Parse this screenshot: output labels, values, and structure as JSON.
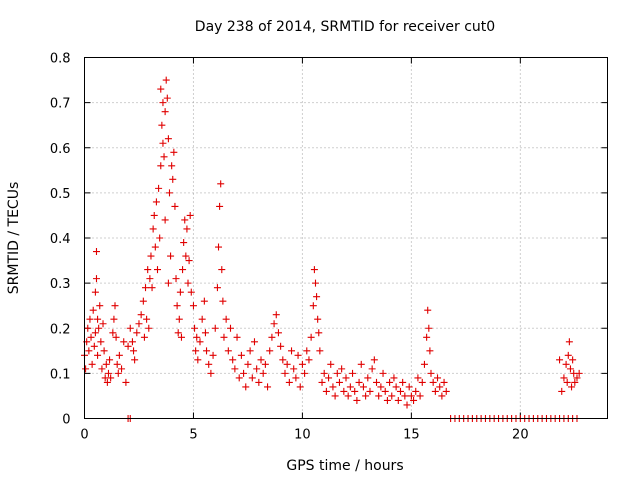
{
  "chart_data": {
    "type": "scatter",
    "title": "Day 238 of 2014, SRMTID for receiver cut0",
    "xlabel": "GPS time / hours",
    "ylabel": "SRMTID / TECUs",
    "xlim": [
      0,
      24
    ],
    "ylim": [
      0,
      0.8
    ],
    "x_ticks": [
      "0",
      "5",
      "10",
      "15",
      "20"
    ],
    "x_tick_values": [
      0,
      5,
      10,
      15,
      20
    ],
    "y_ticks": [
      "0",
      "0.1",
      "0.2",
      "0.3",
      "0.4",
      "0.5",
      "0.6",
      "0.7",
      "0.8"
    ],
    "y_tick_values": [
      0,
      0.1,
      0.2,
      0.3,
      0.4,
      0.5,
      0.6,
      0.7,
      0.8
    ],
    "grid": true,
    "marker": "+",
    "marker_color": "#e00000",
    "series": [
      {
        "name": "SRMTID",
        "points": [
          [
            0.0,
            0.14
          ],
          [
            0.05,
            0.11
          ],
          [
            0.1,
            0.17
          ],
          [
            0.15,
            0.2
          ],
          [
            0.2,
            0.15
          ],
          [
            0.25,
            0.22
          ],
          [
            0.3,
            0.18
          ],
          [
            0.35,
            0.12
          ],
          [
            0.4,
            0.24
          ],
          [
            0.45,
            0.16
          ],
          [
            0.5,
            0.28
          ],
          [
            0.5,
            0.19
          ],
          [
            0.55,
            0.37
          ],
          [
            0.55,
            0.31
          ],
          [
            0.6,
            0.22
          ],
          [
            0.6,
            0.14
          ],
          [
            0.65,
            0.2
          ],
          [
            0.7,
            0.25
          ],
          [
            0.75,
            0.17
          ],
          [
            0.8,
            0.11
          ],
          [
            0.85,
            0.21
          ],
          [
            0.9,
            0.15
          ],
          [
            0.95,
            0.09
          ],
          [
            1.0,
            0.12
          ],
          [
            1.05,
            0.08
          ],
          [
            1.1,
            0.1
          ],
          [
            1.15,
            0.13
          ],
          [
            1.2,
            0.09
          ],
          [
            1.3,
            0.19
          ],
          [
            1.35,
            0.22
          ],
          [
            1.4,
            0.25
          ],
          [
            1.45,
            0.18
          ],
          [
            1.5,
            0.12
          ],
          [
            1.55,
            0.1
          ],
          [
            1.6,
            0.14
          ],
          [
            1.7,
            0.11
          ],
          [
            1.8,
            0.17
          ],
          [
            1.9,
            0.08
          ],
          [
            2.0,
            0.16
          ],
          [
            2.0,
            0.0
          ],
          [
            2.1,
            0.0
          ],
          [
            2.1,
            0.2
          ],
          [
            2.2,
            0.17
          ],
          [
            2.25,
            0.15
          ],
          [
            2.3,
            0.13
          ],
          [
            2.4,
            0.19
          ],
          [
            2.5,
            0.21
          ],
          [
            2.6,
            0.23
          ],
          [
            2.7,
            0.26
          ],
          [
            2.75,
            0.18
          ],
          [
            2.8,
            0.29
          ],
          [
            2.85,
            0.22
          ],
          [
            2.9,
            0.33
          ],
          [
            2.95,
            0.2
          ],
          [
            3.0,
            0.31
          ],
          [
            3.05,
            0.36
          ],
          [
            3.1,
            0.29
          ],
          [
            3.15,
            0.42
          ],
          [
            3.2,
            0.45
          ],
          [
            3.25,
            0.38
          ],
          [
            3.3,
            0.48
          ],
          [
            3.35,
            0.33
          ],
          [
            3.4,
            0.51
          ],
          [
            3.45,
            0.4
          ],
          [
            3.5,
            0.56
          ],
          [
            3.5,
            0.73
          ],
          [
            3.55,
            0.65
          ],
          [
            3.6,
            0.61
          ],
          [
            3.6,
            0.7
          ],
          [
            3.65,
            0.58
          ],
          [
            3.7,
            0.68
          ],
          [
            3.7,
            0.44
          ],
          [
            3.75,
            0.75
          ],
          [
            3.8,
            0.71
          ],
          [
            3.85,
            0.62
          ],
          [
            3.85,
            0.3
          ],
          [
            3.9,
            0.5
          ],
          [
            3.95,
            0.36
          ],
          [
            4.0,
            0.56
          ],
          [
            4.05,
            0.53
          ],
          [
            4.1,
            0.59
          ],
          [
            4.15,
            0.47
          ],
          [
            4.2,
            0.31
          ],
          [
            4.25,
            0.25
          ],
          [
            4.3,
            0.19
          ],
          [
            4.35,
            0.22
          ],
          [
            4.4,
            0.28
          ],
          [
            4.45,
            0.18
          ],
          [
            4.5,
            0.33
          ],
          [
            4.55,
            0.39
          ],
          [
            4.6,
            0.44
          ],
          [
            4.65,
            0.36
          ],
          [
            4.7,
            0.42
          ],
          [
            4.75,
            0.3
          ],
          [
            4.8,
            0.35
          ],
          [
            4.85,
            0.45
          ],
          [
            4.9,
            0.28
          ],
          [
            5.0,
            0.25
          ],
          [
            5.05,
            0.2
          ],
          [
            5.1,
            0.15
          ],
          [
            5.15,
            0.18
          ],
          [
            5.2,
            0.13
          ],
          [
            5.3,
            0.17
          ],
          [
            5.4,
            0.22
          ],
          [
            5.5,
            0.26
          ],
          [
            5.55,
            0.19
          ],
          [
            5.6,
            0.15
          ],
          [
            5.7,
            0.12
          ],
          [
            5.8,
            0.1
          ],
          [
            5.9,
            0.14
          ],
          [
            6.0,
            0.2
          ],
          [
            6.1,
            0.29
          ],
          [
            6.15,
            0.38
          ],
          [
            6.2,
            0.47
          ],
          [
            6.25,
            0.52
          ],
          [
            6.3,
            0.33
          ],
          [
            6.35,
            0.26
          ],
          [
            6.4,
            0.18
          ],
          [
            6.5,
            0.22
          ],
          [
            6.6,
            0.15
          ],
          [
            6.7,
            0.2
          ],
          [
            6.8,
            0.13
          ],
          [
            6.9,
            0.11
          ],
          [
            7.0,
            0.18
          ],
          [
            7.1,
            0.09
          ],
          [
            7.2,
            0.14
          ],
          [
            7.3,
            0.1
          ],
          [
            7.4,
            0.07
          ],
          [
            7.5,
            0.12
          ],
          [
            7.6,
            0.15
          ],
          [
            7.7,
            0.09
          ],
          [
            7.8,
            0.17
          ],
          [
            7.9,
            0.11
          ],
          [
            8.0,
            0.08
          ],
          [
            8.1,
            0.13
          ],
          [
            8.2,
            0.1
          ],
          [
            8.3,
            0.12
          ],
          [
            8.4,
            0.07
          ],
          [
            8.5,
            0.15
          ],
          [
            8.6,
            0.18
          ],
          [
            8.7,
            0.21
          ],
          [
            8.8,
            0.23
          ],
          [
            8.9,
            0.19
          ],
          [
            9.0,
            0.16
          ],
          [
            9.1,
            0.13
          ],
          [
            9.2,
            0.1
          ],
          [
            9.3,
            0.12
          ],
          [
            9.4,
            0.08
          ],
          [
            9.5,
            0.15
          ],
          [
            9.6,
            0.11
          ],
          [
            9.7,
            0.09
          ],
          [
            9.8,
            0.14
          ],
          [
            9.9,
            0.07
          ],
          [
            10.0,
            0.12
          ],
          [
            10.1,
            0.1
          ],
          [
            10.2,
            0.15
          ],
          [
            10.3,
            0.13
          ],
          [
            10.4,
            0.18
          ],
          [
            10.5,
            0.25
          ],
          [
            10.55,
            0.33
          ],
          [
            10.6,
            0.3
          ],
          [
            10.65,
            0.27
          ],
          [
            10.7,
            0.22
          ],
          [
            10.75,
            0.19
          ],
          [
            10.8,
            0.15
          ],
          [
            10.9,
            0.08
          ],
          [
            11.0,
            0.1
          ],
          [
            11.1,
            0.06
          ],
          [
            11.2,
            0.09
          ],
          [
            11.3,
            0.12
          ],
          [
            11.4,
            0.07
          ],
          [
            11.5,
            0.05
          ],
          [
            11.6,
            0.1
          ],
          [
            11.7,
            0.08
          ],
          [
            11.8,
            0.11
          ],
          [
            11.9,
            0.06
          ],
          [
            12.0,
            0.09
          ],
          [
            12.1,
            0.05
          ],
          [
            12.2,
            0.07
          ],
          [
            12.3,
            0.1
          ],
          [
            12.4,
            0.06
          ],
          [
            12.5,
            0.04
          ],
          [
            12.6,
            0.08
          ],
          [
            12.7,
            0.12
          ],
          [
            12.8,
            0.07
          ],
          [
            12.9,
            0.05
          ],
          [
            13.0,
            0.09
          ],
          [
            13.1,
            0.06
          ],
          [
            13.2,
            0.11
          ],
          [
            13.3,
            0.13
          ],
          [
            13.4,
            0.08
          ],
          [
            13.5,
            0.05
          ],
          [
            13.6,
            0.07
          ],
          [
            13.7,
            0.1
          ],
          [
            13.8,
            0.06
          ],
          [
            13.9,
            0.04
          ],
          [
            14.0,
            0.08
          ],
          [
            14.1,
            0.05
          ],
          [
            14.2,
            0.09
          ],
          [
            14.3,
            0.07
          ],
          [
            14.4,
            0.04
          ],
          [
            14.5,
            0.06
          ],
          [
            14.6,
            0.08
          ],
          [
            14.7,
            0.05
          ],
          [
            14.8,
            0.03
          ],
          [
            14.9,
            0.07
          ],
          [
            15.0,
            0.05
          ],
          [
            15.1,
            0.04
          ],
          [
            15.2,
            0.06
          ],
          [
            15.3,
            0.09
          ],
          [
            15.4,
            0.05
          ],
          [
            15.5,
            0.08
          ],
          [
            15.6,
            0.12
          ],
          [
            15.7,
            0.18
          ],
          [
            15.75,
            0.24
          ],
          [
            15.8,
            0.2
          ],
          [
            15.85,
            0.15
          ],
          [
            15.9,
            0.1
          ],
          [
            16.0,
            0.08
          ],
          [
            16.1,
            0.06
          ],
          [
            16.2,
            0.09
          ],
          [
            16.3,
            0.07
          ],
          [
            16.4,
            0.05
          ],
          [
            16.5,
            0.08
          ],
          [
            16.6,
            0.06
          ],
          [
            16.8,
            0.0
          ],
          [
            17.0,
            0.0
          ],
          [
            17.2,
            0.0
          ],
          [
            17.4,
            0.0
          ],
          [
            17.6,
            0.0
          ],
          [
            17.8,
            0.0
          ],
          [
            18.0,
            0.0
          ],
          [
            18.2,
            0.0
          ],
          [
            18.4,
            0.0
          ],
          [
            18.6,
            0.0
          ],
          [
            18.8,
            0.0
          ],
          [
            19.0,
            0.0
          ],
          [
            19.2,
            0.0
          ],
          [
            19.4,
            0.0
          ],
          [
            19.6,
            0.0
          ],
          [
            19.8,
            0.0
          ],
          [
            20.0,
            0.0
          ],
          [
            20.2,
            0.0
          ],
          [
            20.4,
            0.0
          ],
          [
            20.6,
            0.0
          ],
          [
            20.8,
            0.0
          ],
          [
            21.0,
            0.0
          ],
          [
            21.2,
            0.0
          ],
          [
            21.4,
            0.0
          ],
          [
            21.6,
            0.0
          ],
          [
            21.8,
            0.0
          ],
          [
            22.0,
            0.0
          ],
          [
            22.2,
            0.0
          ],
          [
            22.4,
            0.0
          ],
          [
            22.6,
            0.0
          ],
          [
            21.8,
            0.13
          ],
          [
            21.9,
            0.06
          ],
          [
            22.0,
            0.09
          ],
          [
            22.1,
            0.12
          ],
          [
            22.15,
            0.08
          ],
          [
            22.2,
            0.14
          ],
          [
            22.25,
            0.17
          ],
          [
            22.3,
            0.11
          ],
          [
            22.35,
            0.07
          ],
          [
            22.4,
            0.13
          ],
          [
            22.45,
            0.1
          ],
          [
            22.5,
            0.08
          ],
          [
            22.6,
            0.09
          ],
          [
            22.7,
            0.1
          ]
        ]
      }
    ]
  }
}
